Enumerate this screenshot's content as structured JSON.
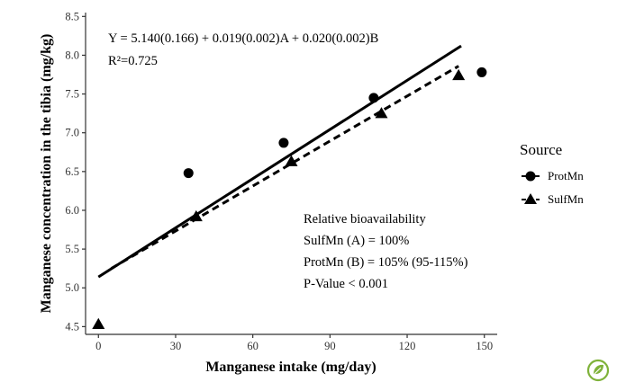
{
  "chart_data": {
    "type": "scatter",
    "xlabel": "Manganese intake (mg/day)",
    "ylabel": "Manganese concentration in the tibia (mg/kg)",
    "xlim": [
      -5,
      155
    ],
    "ylim": [
      4.4,
      8.55
    ],
    "x_ticks": [
      0,
      30,
      60,
      90,
      120,
      150
    ],
    "y_ticks": [
      4.5,
      5.0,
      5.5,
      6.0,
      6.5,
      7.0,
      7.5,
      8.0,
      8.5
    ],
    "y_tick_labels": [
      "4.5",
      "5.0",
      "5.5",
      "6.0",
      "6.5",
      "7.0",
      "7.5",
      "8.0",
      "8.5"
    ],
    "grid": false,
    "legend": {
      "title": "Source",
      "placement": "right"
    },
    "series": [
      {
        "name": "ProtMn",
        "marker": "circle",
        "line_style": "solid",
        "points": [
          {
            "x": 35,
            "y": 6.48
          },
          {
            "x": 72,
            "y": 6.87
          },
          {
            "x": 107,
            "y": 7.45
          },
          {
            "x": 149,
            "y": 7.78
          }
        ],
        "fit_line": {
          "x": [
            0,
            141
          ],
          "y": [
            5.14,
            8.12
          ]
        }
      },
      {
        "name": "SulfMn",
        "marker": "triangle",
        "line_style": "dashed",
        "points": [
          {
            "x": 0,
            "y": 4.53
          },
          {
            "x": 38,
            "y": 5.92
          },
          {
            "x": 75,
            "y": 6.63
          },
          {
            "x": 110,
            "y": 7.25
          },
          {
            "x": 140,
            "y": 7.74
          }
        ],
        "fit_line": {
          "x": [
            5,
            140
          ],
          "y": [
            5.25,
            7.86
          ]
        }
      }
    ],
    "annotations": {
      "equation": "Y = 5.140(0.166) + 0.019(0.002)A + 0.020(0.002)B",
      "r2": "R²=0.725",
      "bioavailability": [
        "Relative bioavailability",
        "SulfMn (A) = 100%",
        "ProtMn (B) = 105% (95-115%)",
        "P-Value < 0.001"
      ]
    }
  },
  "colors": {
    "marks": "#000000",
    "axis": "#333333",
    "logo": "#7fb23a"
  },
  "logo_icon": "leaf-badge-icon"
}
